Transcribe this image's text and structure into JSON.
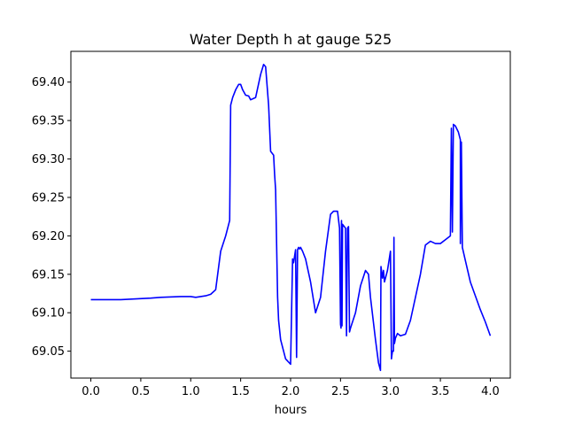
{
  "chart_data": {
    "type": "line",
    "title": "Water Depth h at gauge 525",
    "xlabel": "hours",
    "ylabel": "",
    "xlim": [
      -0.2,
      4.2
    ],
    "ylim": [
      69.015,
      69.44
    ],
    "xticks": [
      0.0,
      0.5,
      1.0,
      1.5,
      2.0,
      2.5,
      3.0,
      3.5,
      4.0
    ],
    "xtick_labels": [
      "0.0",
      "0.5",
      "1.0",
      "1.5",
      "2.0",
      "2.5",
      "3.0",
      "3.5",
      "4.0"
    ],
    "yticks": [
      69.05,
      69.1,
      69.15,
      69.2,
      69.25,
      69.3,
      69.35,
      69.4
    ],
    "ytick_labels": [
      "69.05",
      "69.10",
      "69.15",
      "69.20",
      "69.25",
      "69.30",
      "69.35",
      "69.40"
    ],
    "grid": false,
    "legend": "none",
    "series": [
      {
        "color": "#0000ff",
        "x": [
          0.0,
          0.3,
          0.6,
          0.7,
          0.9,
          1.0,
          1.05,
          1.15,
          1.2,
          1.25,
          1.3,
          1.35,
          1.39,
          1.4,
          1.42,
          1.45,
          1.48,
          1.5,
          1.52,
          1.55,
          1.58,
          1.6,
          1.65,
          1.7,
          1.73,
          1.75,
          1.78,
          1.8,
          1.83,
          1.84,
          1.85,
          1.87,
          1.88,
          1.9,
          1.95,
          2.0,
          2.02,
          2.03,
          2.05,
          2.06,
          2.07,
          2.08,
          2.09,
          2.1,
          2.12,
          2.15,
          2.2,
          2.25,
          2.3,
          2.35,
          2.4,
          2.43,
          2.47,
          2.49,
          2.5,
          2.505,
          2.51,
          2.515,
          2.52,
          2.55,
          2.56,
          2.57,
          2.58,
          2.59,
          2.6,
          2.65,
          2.7,
          2.75,
          2.78,
          2.8,
          2.85,
          2.88,
          2.9,
          2.905,
          2.92,
          2.93,
          2.94,
          2.95,
          2.97,
          3.0,
          3.01,
          3.02,
          3.03,
          3.035,
          3.04,
          3.05,
          3.05,
          3.07,
          3.1,
          3.15,
          3.2,
          3.3,
          3.35,
          3.4,
          3.45,
          3.5,
          3.55,
          3.6,
          3.61,
          3.62,
          3.63,
          3.65,
          3.68,
          3.7,
          3.7,
          3.71,
          3.72,
          3.75,
          3.8,
          3.85,
          3.9,
          3.95,
          4.0
        ],
        "y": [
          69.117,
          69.117,
          69.119,
          69.12,
          69.121,
          69.121,
          69.12,
          69.122,
          69.124,
          69.13,
          69.18,
          69.2,
          69.22,
          69.37,
          69.38,
          69.39,
          69.397,
          69.397,
          69.39,
          69.383,
          69.382,
          69.377,
          69.38,
          69.41,
          69.423,
          69.42,
          69.37,
          69.31,
          69.305,
          69.28,
          69.26,
          69.12,
          69.09,
          69.065,
          69.04,
          69.033,
          69.17,
          69.165,
          69.182,
          69.042,
          69.182,
          69.185,
          69.183,
          69.185,
          69.18,
          69.17,
          69.14,
          69.1,
          69.12,
          69.18,
          69.228,
          69.232,
          69.232,
          69.21,
          69.085,
          69.08,
          69.22,
          69.083,
          69.215,
          69.21,
          69.07,
          69.21,
          69.212,
          69.075,
          69.08,
          69.1,
          69.135,
          69.155,
          69.15,
          69.12,
          69.065,
          69.035,
          69.025,
          69.16,
          69.145,
          69.155,
          69.14,
          69.145,
          69.155,
          69.18,
          69.04,
          69.05,
          69.05,
          69.198,
          69.06,
          69.067,
          69.067,
          69.073,
          69.07,
          69.072,
          69.09,
          69.15,
          69.188,
          69.193,
          69.19,
          69.19,
          69.195,
          69.2,
          69.34,
          69.205,
          69.345,
          69.343,
          69.335,
          69.325,
          69.19,
          69.322,
          69.185,
          69.168,
          69.14,
          69.122,
          69.104,
          69.088,
          69.07
        ]
      }
    ]
  }
}
